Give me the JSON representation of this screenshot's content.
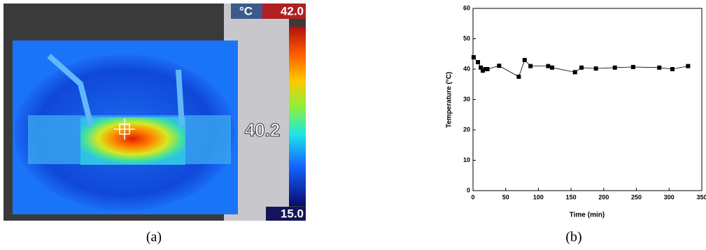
{
  "thermal_image": {
    "unit": "°C",
    "max_label": "42.0",
    "reading": "40.2",
    "min_label": "15.0",
    "caption": "(a)"
  },
  "chart_data": {
    "type": "line",
    "caption": "(b)",
    "xlabel": "Time (min)",
    "ylabel": "Temperature (°C)",
    "x": [
      1,
      7.5,
      12,
      15,
      19,
      22,
      40,
      70,
      79,
      88,
      115,
      121,
      156,
      166,
      188,
      217,
      245,
      285,
      305,
      329
    ],
    "series": [
      {
        "name": "Temperature",
        "color": "#000000",
        "values": [
          43.9,
          42.3,
          40.5,
          39.5,
          40,
          40,
          41.1,
          37.5,
          43,
          41,
          41,
          40.5,
          39,
          40.5,
          40.2,
          40.5,
          40.7,
          40.5,
          40,
          41
        ]
      }
    ],
    "xlim": [
      0,
      350
    ],
    "xticks": [
      0,
      50,
      100,
      150,
      200,
      250,
      300,
      350
    ],
    "ylim": [
      0,
      60
    ],
    "yticks": [
      0,
      10,
      20,
      30,
      40,
      50,
      60
    ],
    "grid": false
  }
}
